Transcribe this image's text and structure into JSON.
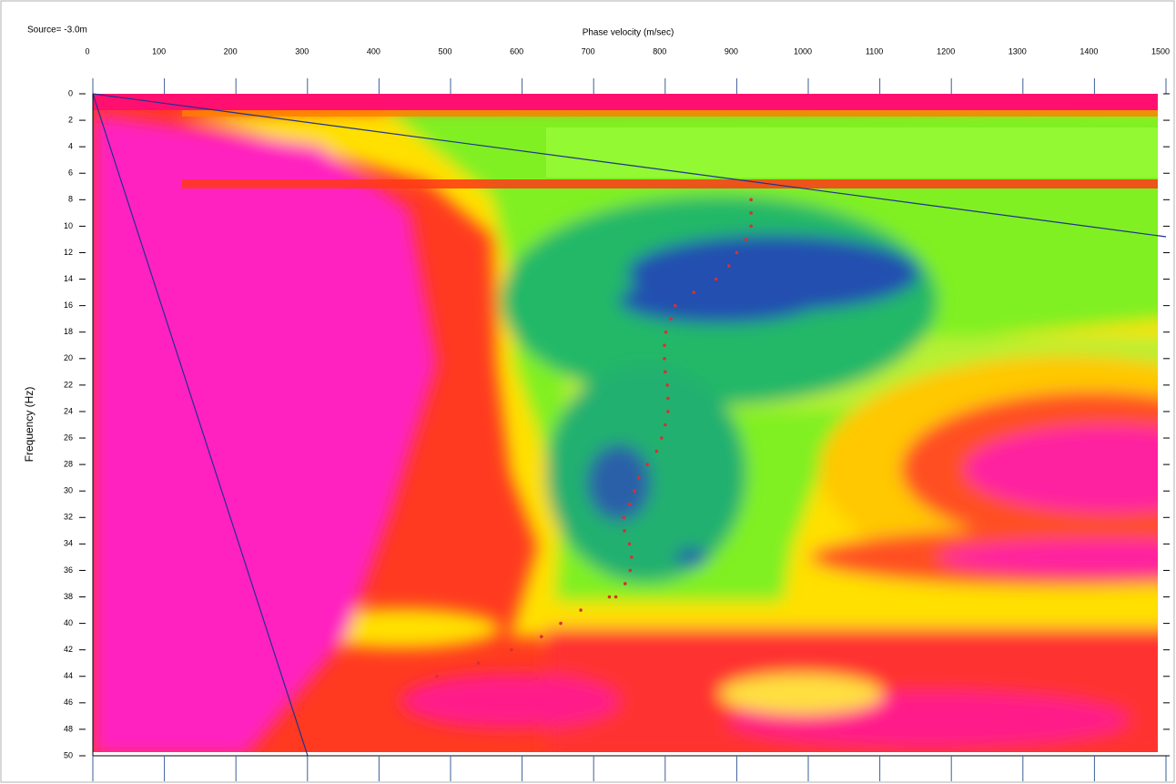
{
  "chart_data": {
    "type": "scatter",
    "title": "Source= -3.0m",
    "x_label": "Phase velocity (m/sec)",
    "y_label": "Frequency (Hz)",
    "xlim": [
      0,
      1500
    ],
    "ylim": [
      0,
      50
    ],
    "y_inverted": true,
    "xticks": [
      0,
      100,
      200,
      300,
      400,
      500,
      600,
      700,
      800,
      900,
      1000,
      1100,
      1200,
      1300,
      1400,
      1500
    ],
    "yticks": [
      0,
      2,
      4,
      6,
      8,
      10,
      12,
      14,
      16,
      18,
      20,
      22,
      24,
      26,
      28,
      30,
      32,
      34,
      36,
      38,
      40,
      42,
      44,
      46,
      48,
      50
    ],
    "color": "#d83030",
    "x": [
      920,
      920,
      920,
      913,
      900,
      889,
      871,
      840,
      814,
      808,
      801,
      799,
      799,
      800,
      803,
      804,
      804,
      800,
      795,
      788,
      775,
      763,
      757,
      750,
      742,
      743,
      750,
      753,
      751,
      744,
      731,
      722,
      682,
      654,
      627,
      585,
      539,
      481
    ],
    "values": [
      8,
      9,
      10,
      11,
      12,
      13,
      14,
      15,
      16,
      17,
      18,
      19,
      20,
      21,
      22,
      23,
      24,
      25,
      26,
      27,
      28,
      29,
      30,
      31,
      32,
      33,
      34,
      35,
      36,
      37,
      38,
      38,
      39,
      40,
      41,
      42,
      43,
      44
    ]
  }
}
